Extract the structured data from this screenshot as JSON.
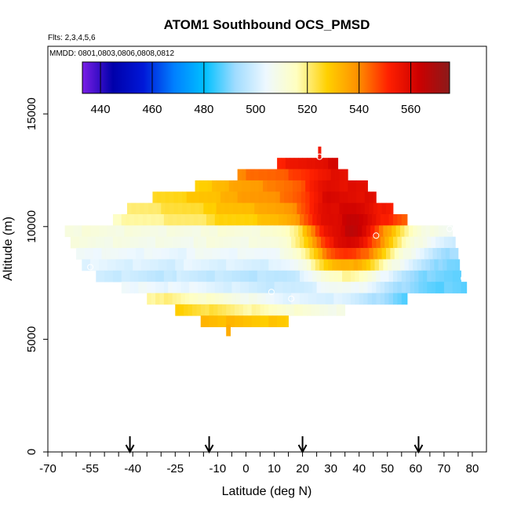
{
  "chart_data": {
    "type": "heatmap",
    "title": "ATOM1 Southbound OCS_PMSD",
    "flights_note": "Flts: 2,3,4,5,6",
    "dates_note": "MMDD: 0801,0803,0806,0808,0812",
    "xlabel": "Latitude (deg N)",
    "ylabel": "Altitude (m)",
    "xlim": [
      -70,
      85
    ],
    "ylim": [
      0,
      18000
    ],
    "x_ticks": [
      -70,
      -55,
      -40,
      -25,
      -10,
      0,
      10,
      20,
      30,
      40,
      50,
      60,
      70,
      80
    ],
    "x_ticks_minor": [
      -65,
      -60,
      -50,
      -45,
      -35,
      -30,
      -20,
      -15,
      -5,
      5,
      15,
      25,
      35,
      45,
      55,
      65,
      75
    ],
    "y_ticks": [
      0,
      5000,
      10000,
      15000
    ],
    "colorbar": {
      "min": 433,
      "max": 575,
      "ticks": [
        440,
        460,
        480,
        500,
        520,
        540,
        560
      ],
      "divisions": [
        440,
        460,
        480,
        520,
        540,
        560
      ],
      "colors": [
        "#7a1ee6",
        "#0000aa",
        "#0018d8",
        "#0080ff",
        "#00c0ff",
        "#a0dcff",
        "#eef8ff",
        "#ffffc0",
        "#ffd000",
        "#ff9000",
        "#ff2000",
        "#cc0000",
        "#8b1a1a"
      ]
    },
    "arrows": [
      -41,
      -13,
      20,
      61
    ],
    "bands": [
      {
        "alt": 13300,
        "x0": 25.5,
        "x1": 26.5,
        "v0": 553,
        "v1": 553
      },
      {
        "alt": 12800,
        "x0": 11,
        "x1": 32.5,
        "v0": 552,
        "v1": 560
      },
      {
        "alt": 12300,
        "x0": -3,
        "x1": 36,
        "v0": 541,
        "v1": 552
      },
      {
        "alt": 11800,
        "x0": -18,
        "x1": 43,
        "v0": 530,
        "v1": 553
      },
      {
        "alt": 11300,
        "x0": -33,
        "x1": 46,
        "v0": 527,
        "v1": 550
      },
      {
        "alt": 10800,
        "x0": -42,
        "x1": 52,
        "v0": 522,
        "v1": 545
      },
      {
        "alt": 10300,
        "x0": -47,
        "x1": 57,
        "v0": 518,
        "v1": 540
      },
      {
        "alt": 9800,
        "x0": -64,
        "x1": 73,
        "v0": 513,
        "v1": 508
      },
      {
        "alt": 9300,
        "x0": -62,
        "x1": 74,
        "v0": 512,
        "v1": 505
      },
      {
        "alt": 8800,
        "x0": -60,
        "x1": 75,
        "v0": 508,
        "v1": 500
      },
      {
        "alt": 8300,
        "x0": -58,
        "x1": 75.5,
        "v0": 505,
        "v1": 495
      },
      {
        "alt": 7800,
        "x0": -53,
        "x1": 76,
        "v0": 502,
        "v1": 488
      },
      {
        "alt": 7300,
        "x0": -44,
        "x1": 78,
        "v0": 508,
        "v1": 485
      },
      {
        "alt": 6800,
        "x0": -35,
        "x1": 57,
        "v0": 522,
        "v1": 485
      },
      {
        "alt": 6300,
        "x0": -25,
        "x1": 35,
        "v0": 528,
        "v1": 505
      },
      {
        "alt": 5800,
        "x0": -16,
        "x1": 15,
        "v0": 533,
        "v1": 528
      },
      {
        "alt": 5400,
        "x0": -7,
        "x1": -5.5,
        "v0": 535,
        "v1": 535
      }
    ],
    "hotspots": [
      {
        "x": 37,
        "y": 9900,
        "rx": 15,
        "ry": 2000,
        "v": 566
      },
      {
        "x": 30,
        "y": 11000,
        "rx": 6,
        "ry": 1800,
        "v": 560
      },
      {
        "x": 73,
        "y": 8000,
        "rx": 8,
        "ry": 1200,
        "v": 488
      }
    ],
    "circles": [
      {
        "x": -55,
        "y": 8200
      },
      {
        "x": 9,
        "y": 7100
      },
      {
        "x": 16,
        "y": 6800
      },
      {
        "x": 46,
        "y": 9600
      },
      {
        "x": 72,
        "y": 9900
      },
      {
        "x": 77,
        "y": 7700
      },
      {
        "x": 26,
        "y": 13100
      }
    ]
  }
}
